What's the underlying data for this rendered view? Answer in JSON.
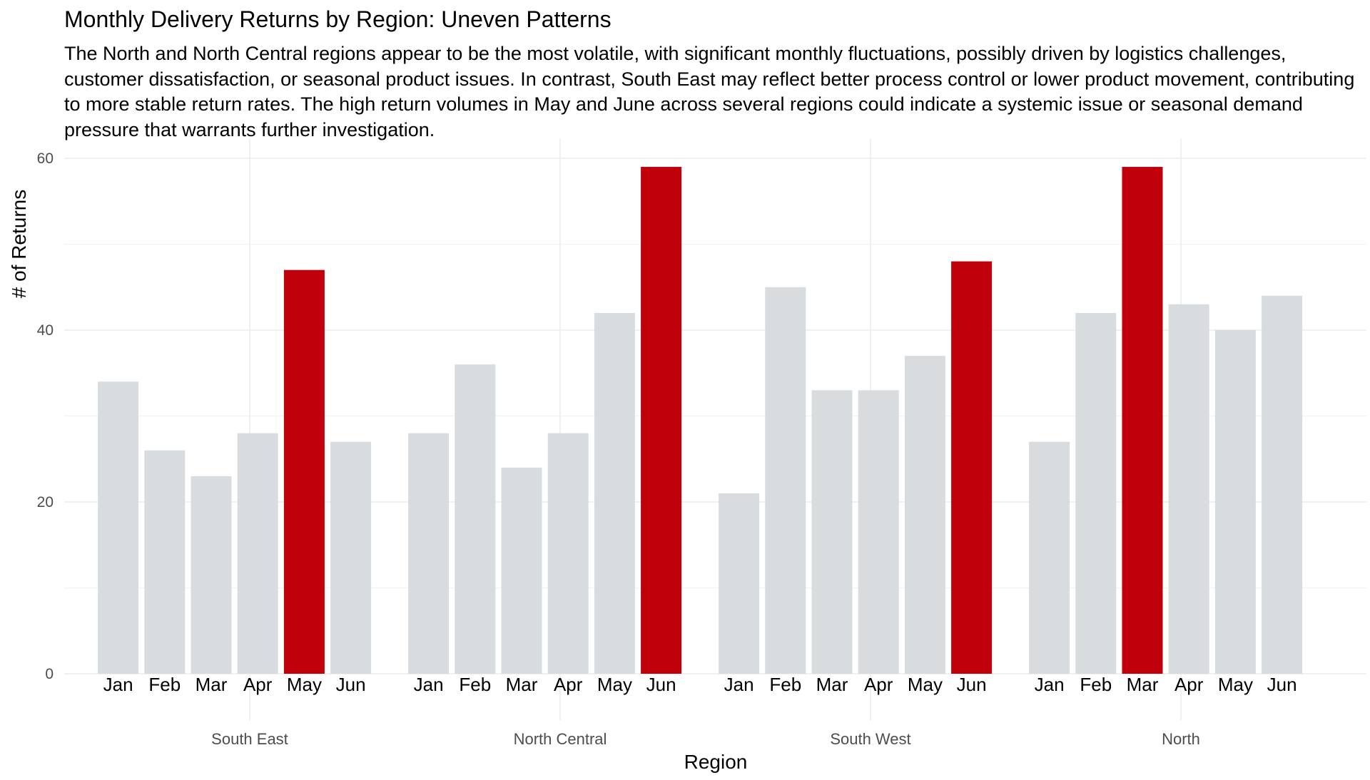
{
  "chart_data": {
    "type": "bar",
    "title": "Monthly Delivery Returns by Region: Uneven Patterns",
    "subtitle": "The North and North Central regions appear to be the most volatile, with significant monthly fluctuations, possibly driven by logistics challenges, customer dissatisfaction, or seasonal product issues. In contrast, South East may reflect better process control or lower product movement, contributing to more stable return rates. The high return volumes in May and June across several regions could indicate a systemic issue or seasonal demand pressure that warrants further investigation.",
    "xlabel": "Region",
    "ylabel": "# of Returns",
    "ylim": [
      0,
      62
    ],
    "yticks": [
      0,
      20,
      40,
      60
    ],
    "grid": true,
    "months": [
      "Jan",
      "Feb",
      "Mar",
      "Apr",
      "May",
      "Jun"
    ],
    "base_color": "#d9dcdf",
    "highlight_color": "#c0000b",
    "groups": [
      {
        "region": "South East",
        "values": [
          34,
          26,
          23,
          28,
          47,
          27
        ],
        "highlight": "May"
      },
      {
        "region": "North Central",
        "values": [
          28,
          36,
          24,
          28,
          42,
          59
        ],
        "highlight": "Jun"
      },
      {
        "region": "South West",
        "values": [
          21,
          45,
          33,
          33,
          37,
          48
        ],
        "highlight": "Jun"
      },
      {
        "region": "North",
        "values": [
          27,
          42,
          59,
          43,
          40,
          44
        ],
        "highlight": "Mar"
      }
    ]
  }
}
